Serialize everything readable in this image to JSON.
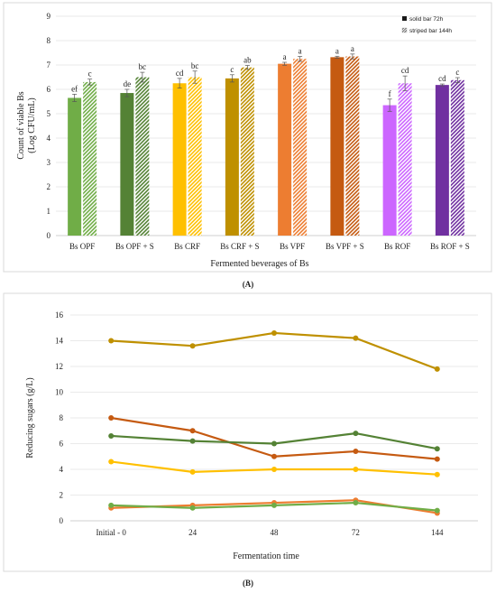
{
  "chart_data": [
    {
      "type": "bar",
      "categories": [
        "Bs OPF",
        "Bs OPF + S",
        "Bs CRF",
        "Bs CRF + S",
        "Bs VPF",
        "Bs VPF + S",
        "Bs ROF",
        "Bs ROF + S"
      ],
      "series": [
        {
          "name": "solid bar 72h",
          "values": [
            5.65,
            5.85,
            6.25,
            6.45,
            7.05,
            7.32,
            5.35,
            6.18
          ],
          "errors": [
            0.15,
            0.15,
            0.2,
            0.15,
            0.06,
            0.04,
            0.25,
            0.04
          ],
          "letters": [
            "ef",
            "de",
            "cd",
            "c",
            "a",
            "a",
            "f",
            "cd"
          ]
        },
        {
          "name": "striped bar 144h",
          "values": [
            6.3,
            6.5,
            6.5,
            6.9,
            7.25,
            7.35,
            6.25,
            6.38
          ],
          "errors": [
            0.12,
            0.2,
            0.25,
            0.08,
            0.1,
            0.1,
            0.3,
            0.1
          ],
          "letters": [
            "c",
            "bc",
            "bc",
            "ab",
            "a",
            "a",
            "cd",
            "c"
          ]
        }
      ],
      "colors": [
        "#70ad47",
        "#548235",
        "#ffc000",
        "#bf9000",
        "#ed7d31",
        "#c55a11",
        "#cc66ff",
        "#7030a0"
      ],
      "ylabel_line1": "Count of viable Bs",
      "ylabel_line2": "(Log CFU/mL)",
      "xlabel": "Fermented beverages of Bs",
      "ylim": [
        0,
        9
      ],
      "yticks": [
        "0",
        "1",
        "2",
        "3",
        "4",
        "5",
        "6",
        "7",
        "8",
        "9"
      ],
      "legend_position": "top-right",
      "panel_label": "(A)"
    },
    {
      "type": "line",
      "x": [
        "Initial - 0",
        "24",
        "48",
        "72",
        "144"
      ],
      "series": [
        {
          "color": "#bf9000",
          "values": [
            14.0,
            13.6,
            14.6,
            14.2,
            11.8
          ]
        },
        {
          "color": "#c55a11",
          "values": [
            8.0,
            7.0,
            5.0,
            5.4,
            4.8
          ]
        },
        {
          "color": "#548235",
          "values": [
            6.6,
            6.2,
            6.0,
            6.8,
            5.6
          ]
        },
        {
          "color": "#ffc000",
          "values": [
            4.6,
            3.8,
            4.0,
            4.0,
            3.6
          ]
        },
        {
          "color": "#ed7d31",
          "values": [
            1.0,
            1.2,
            1.4,
            1.6,
            0.6
          ]
        },
        {
          "color": "#70ad47",
          "values": [
            1.2,
            1.0,
            1.2,
            1.4,
            0.8
          ]
        }
      ],
      "ylabel": "Reducing sugars (g/L)",
      "xlabel": "Fermentation time",
      "ylim": [
        0,
        16
      ],
      "yticks": [
        "0",
        "2",
        "4",
        "6",
        "8",
        "10",
        "12",
        "14",
        "16"
      ],
      "panel_label": "(B)"
    }
  ]
}
